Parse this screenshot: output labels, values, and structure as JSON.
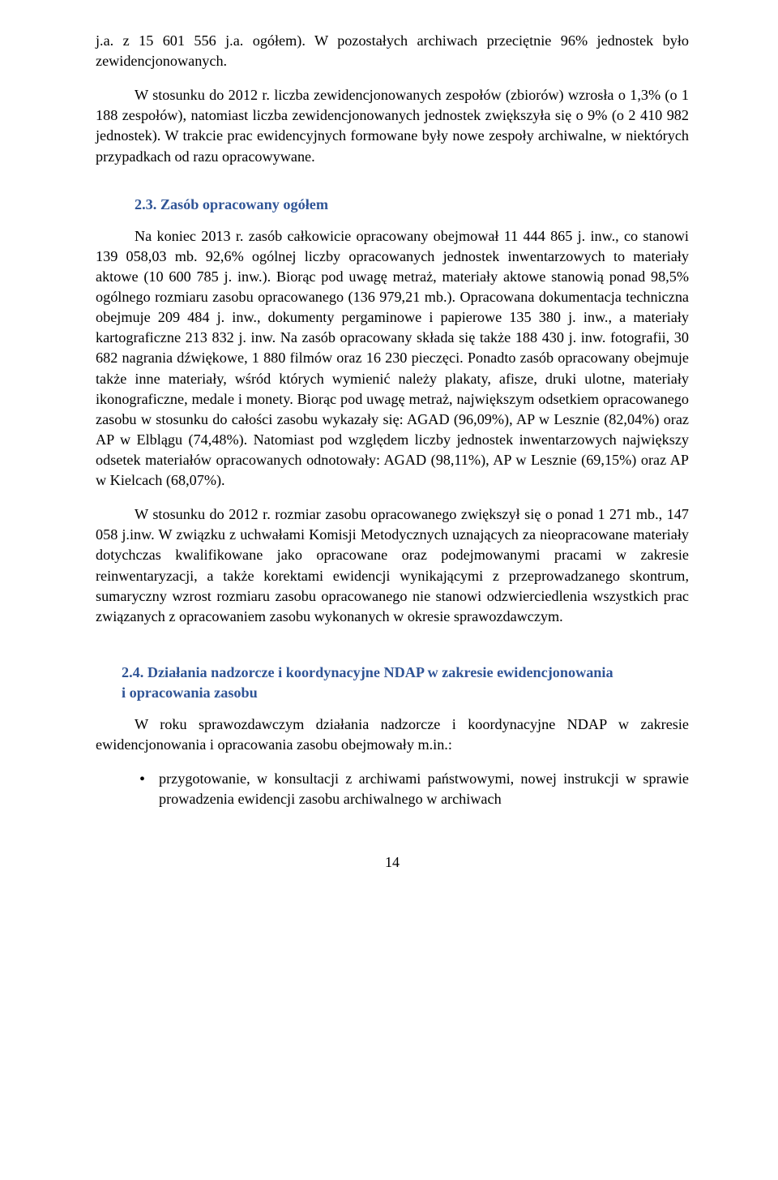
{
  "text_color": "#000000",
  "heading_color": "#2f5496",
  "background_color": "#ffffff",
  "font_family": "Book Antiqua / Palatino",
  "body_font_size_pt": 13,
  "p1": "j.a. z 15 601 556 j.a. ogółem). W pozostałych archiwach przeciętnie 96% jednostek było zewidencjonowanych.",
  "p2": "W stosunku do 2012 r. liczba zewidencjonowanych zespołów (zbiorów) wzrosła o 1,3% (o 1 188 zespołów), natomiast liczba zewidencjonowanych jednostek zwiększyła się o 9% (o 2 410 982 jednostek). W trakcie prac ewidencyjnych formowane były nowe zespoły archiwalne, w niektórych przypadkach od razu opracowywane.",
  "h23": "2.3. Zasób opracowany ogółem",
  "p3": "Na koniec 2013 r. zasób całkowicie opracowany obejmował 11 444 865 j. inw., co stanowi 139 058,03 mb. 92,6% ogólnej liczby opracowanych jednostek inwentarzowych to materiały aktowe (10 600 785 j. inw.). Biorąc pod uwagę metraż, materiały aktowe stanowią ponad 98,5% ogólnego rozmiaru zasobu opracowanego (136 979,21 mb.). Opracowana dokumentacja techniczna obejmuje 209 484 j. inw., dokumenty pergaminowe i papierowe 135 380 j. inw., a materiały kartograficzne 213 832 j. inw. Na zasób opracowany składa się także 188 430 j. inw. fotografii, 30 682 nagrania dźwiękowe, 1 880 filmów oraz 16 230 pieczęci. Ponadto zasób opracowany obejmuje także inne materiały, wśród których wymienić należy plakaty, afisze, druki ulotne, materiały ikonograficzne, medale i monety. Biorąc pod uwagę metraż, największym odsetkiem opracowanego zasobu w stosunku do całości zasobu wykazały się: AGAD (96,09%), AP w Lesznie (82,04%) oraz AP w Elblągu (74,48%). Natomiast pod względem liczby jednostek inwentarzowych największy odsetek materiałów opracowanych odnotowały: AGAD (98,11%), AP w Lesznie (69,15%) oraz AP w Kielcach (68,07%).",
  "p4": "W stosunku do 2012 r. rozmiar zasobu opracowanego zwiększył się o ponad 1 271 mb., 147 058 j.inw. W związku z uchwałami Komisji Metodycznych uznających za nieopracowane materiały dotychczas kwalifikowane jako opracowane oraz podejmowanymi pracami w zakresie reinwentaryzacji, a także korektami ewidencji wynikającymi z przeprowadzanego skontrum, sumaryczny wzrost rozmiaru zasobu opracowanego nie stanowi odzwierciedlenia wszystkich prac związanych z opracowaniem zasobu wykonanych w okresie sprawozdawczym.",
  "h24a": "2.4. Działania nadzorcze i koordynacyjne NDAP w zakresie ewidencjonowania",
  "h24b": "i opracowania zasobu",
  "p5": "W roku sprawozdawczym działania nadzorcze i koordynacyjne NDAP w zakresie ewidencjonowania i opracowania zasobu obejmowały m.in.:",
  "bullet1": "przygotowanie, w konsultacji z archiwami państwowymi, nowej instrukcji w sprawie prowadzenia ewidencji zasobu archiwalnego w archiwach",
  "page_number": "14"
}
